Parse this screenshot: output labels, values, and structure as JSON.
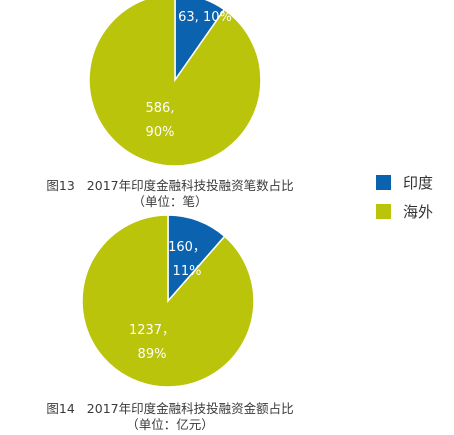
{
  "colors": {
    "india": "#0b63b0",
    "overseas": "#bac40a",
    "label": "#ffffff"
  },
  "legend": {
    "placement": "right",
    "items": [
      {
        "label": "印度",
        "color": "#0b63b0"
      },
      {
        "label": "海外",
        "color": "#bac40a"
      }
    ]
  },
  "chart_data": [
    {
      "type": "pie",
      "caption_label": "图13",
      "title": "2017年印度金融科技投融资笔数占比",
      "unit": "（单位：笔）",
      "slices": [
        {
          "name": "印度",
          "value": 63,
          "percent": 10,
          "label_line1": "63, 10%",
          "label_line2": ""
        },
        {
          "name": "海外",
          "value": 586,
          "percent": 90,
          "label_line1": "586,",
          "label_line2": "90%"
        }
      ]
    },
    {
      "type": "pie",
      "caption_label": "图14",
      "title": "2017年印度金融科技投融资金额占比",
      "unit": "（单位：亿元）",
      "slices": [
        {
          "name": "印度",
          "value": 160,
          "percent": 11,
          "label_line1": "160，",
          "label_line2": "11%"
        },
        {
          "name": "海外",
          "value": 1237,
          "percent": 89,
          "label_line1": "1237，",
          "label_line2": "89%"
        }
      ]
    }
  ]
}
